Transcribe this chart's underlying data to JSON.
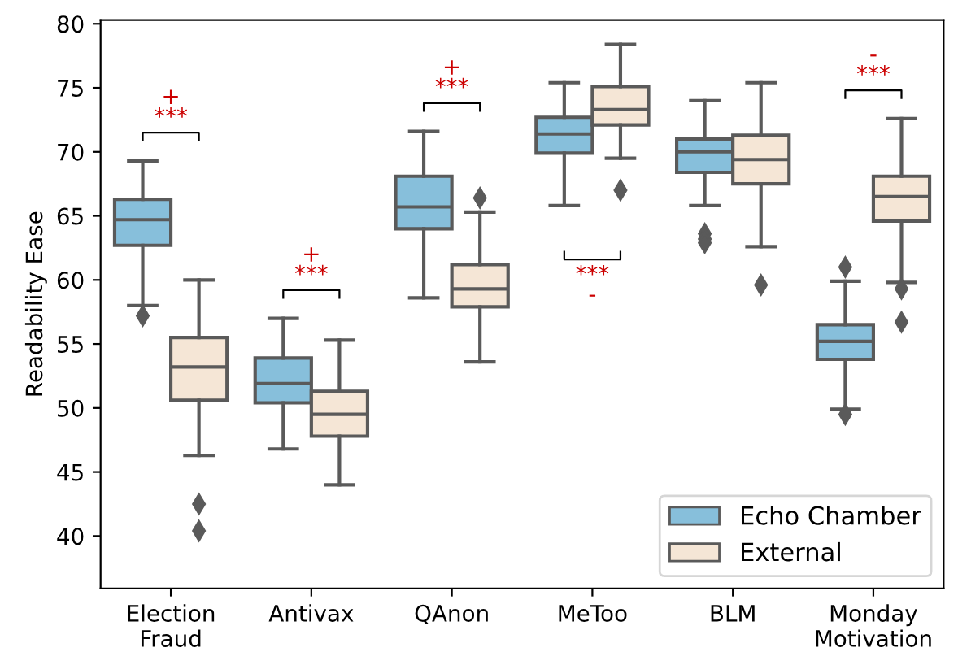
{
  "chart_data": {
    "type": "box",
    "ylabel": "Readability Ease",
    "categories": [
      "Election\nFraud",
      "Antivax",
      "QAnon",
      "MeToo",
      "BLM",
      "Monday\nMotivation"
    ],
    "series": [
      {
        "name": "Echo Chamber",
        "color": "#87bfdb",
        "boxes": [
          {
            "low": 58.0,
            "q1": 62.7,
            "median": 64.7,
            "q3": 66.3,
            "high": 69.3,
            "outliers": [
              57.2
            ]
          },
          {
            "low": 46.8,
            "q1": 50.4,
            "median": 51.9,
            "q3": 53.9,
            "high": 57.0
          },
          {
            "low": 58.6,
            "q1": 64.0,
            "median": 65.7,
            "q3": 68.1,
            "high": 71.6
          },
          {
            "low": 65.8,
            "q1": 69.9,
            "median": 71.4,
            "q3": 72.7,
            "high": 75.4
          },
          {
            "low": 65.8,
            "q1": 68.4,
            "median": 70.0,
            "q3": 71.0,
            "high": 74.0,
            "outliers": [
              63.6,
              63.2,
              62.9
            ]
          },
          {
            "low": 49.9,
            "q1": 53.8,
            "median": 55.2,
            "q3": 56.5,
            "high": 59.9,
            "outliers": [
              61.0,
              49.5
            ]
          }
        ]
      },
      {
        "name": "External",
        "color": "#f5e6d6",
        "boxes": [
          {
            "low": 46.3,
            "q1": 50.6,
            "median": 53.2,
            "q3": 55.5,
            "high": 60.0,
            "outliers": [
              42.5,
              40.4
            ]
          },
          {
            "low": 44.0,
            "q1": 47.8,
            "median": 49.5,
            "q3": 51.3,
            "high": 55.3
          },
          {
            "low": 53.6,
            "q1": 57.9,
            "median": 59.3,
            "q3": 61.2,
            "high": 65.3,
            "outliers": [
              66.4
            ]
          },
          {
            "low": 69.5,
            "q1": 72.1,
            "median": 73.3,
            "q3": 75.1,
            "high": 78.4,
            "outliers": [
              67.0
            ]
          },
          {
            "low": 62.6,
            "q1": 67.5,
            "median": 69.4,
            "q3": 71.3,
            "high": 75.4,
            "outliers": [
              59.6
            ]
          },
          {
            "low": 59.8,
            "q1": 64.6,
            "median": 66.5,
            "q3": 68.1,
            "high": 72.6,
            "outliers": [
              59.3,
              56.7
            ]
          }
        ]
      }
    ],
    "annotations": [
      "+\n***",
      "+\n***",
      "+\n***",
      "***\n-",
      "-\n***"
    ],
    "ylim": [
      35.9,
      80.3
    ],
    "yticks": [
      40,
      45,
      50,
      55,
      60,
      65,
      70,
      75,
      80
    ],
    "grid": false,
    "legend": "bottom right",
    "marker": "diamond"
  }
}
